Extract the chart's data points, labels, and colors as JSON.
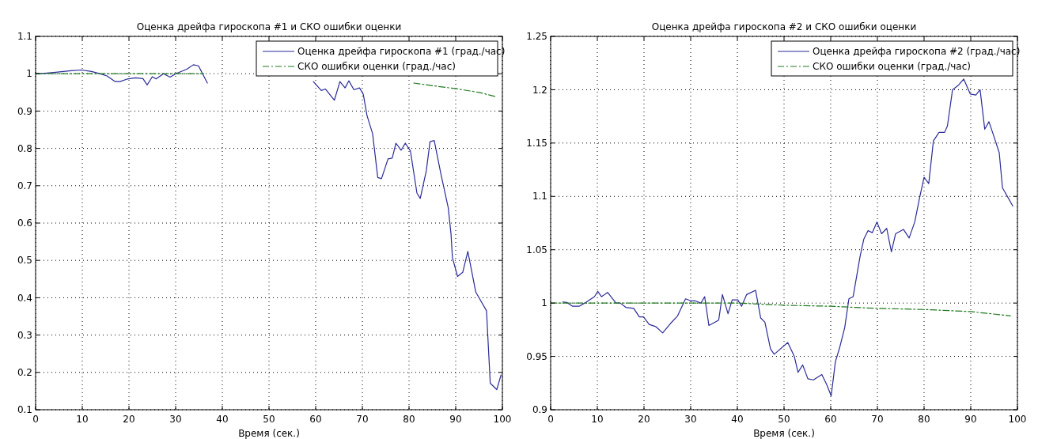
{
  "chart_data": [
    {
      "type": "line",
      "title": "Оценка дрейфа гироскопа #1 и СКО ошибки оценки",
      "xlabel": "Время (сек.)",
      "xlim": [
        0,
        100
      ],
      "xticks": [
        0,
        10,
        20,
        30,
        40,
        50,
        60,
        70,
        80,
        90,
        100
      ],
      "ylim": [
        0.1,
        1.1
      ],
      "yticks": [
        0.1,
        0.2,
        0.3,
        0.4,
        0.5,
        0.6,
        0.7,
        0.8,
        0.9,
        1,
        1.1
      ],
      "grid": true,
      "legend": "top right",
      "series": [
        {
          "name": "Оценка дрейфа гироскопа #1 (град./час)",
          "color": "#2b2b9a",
          "line_style": "solid",
          "x": [
            0,
            1.1,
            4.3,
            7.6,
            9.8,
            12,
            13.7,
            15.3,
            17,
            18.1,
            19.7,
            21.4,
            23,
            23.9,
            25,
            25.8,
            27.4,
            28.8,
            30.2,
            32.4,
            33.8,
            34.9,
            36.8,
            48,
            59.5,
            61.2,
            62.1,
            64,
            65.2,
            66.3,
            67.1,
            68.2,
            69.4,
            70.2,
            71,
            72.2,
            73.3,
            74.1,
            75.5,
            76.4,
            77.2,
            78.3,
            79.2,
            80.3,
            81.7,
            82.4,
            83.7,
            84.5,
            85.4,
            86.8,
            88.4,
            89,
            89.3,
            90.4,
            91.5,
            92.6,
            94.3,
            96.6,
            97.4,
            98.8,
            99.7
          ],
          "values": [
            1,
            1,
            1.004,
            1.008,
            1.01,
            1.006,
            1,
            0.994,
            0.979,
            0.979,
            0.986,
            0.989,
            0.987,
            0.97,
            0.992,
            0.986,
            1,
            0.991,
            1.001,
            1.012,
            1.024,
            1.021,
            0.975,
            null,
            0.979,
            0.955,
            0.959,
            0.929,
            0.979,
            0.962,
            0.981,
            0.957,
            0.962,
            0.945,
            0.888,
            0.839,
            0.722,
            0.719,
            0.772,
            0.774,
            0.814,
            0.795,
            0.814,
            0.793,
            0.68,
            0.666,
            0.74,
            0.818,
            0.821,
            0.733,
            0.641,
            0.57,
            0.507,
            0.457,
            0.468,
            0.524,
            0.415,
            0.365,
            0.171,
            0.154,
            0.193
          ]
        },
        {
          "name": "СКО ошибки оценки (град./час)",
          "color": "#207a20",
          "line_style": "dashdot",
          "x": [
            0,
            10,
            20,
            30,
            36,
            50,
            81,
            85,
            90,
            95,
            98.5
          ],
          "values": [
            1,
            1,
            1,
            1,
            1,
            null,
            0.975,
            0.968,
            0.96,
            0.95,
            0.939
          ]
        }
      ]
    },
    {
      "type": "line",
      "title": "Оценка дрейфа гироскопа #2 и СКО ошибки оценки",
      "xlabel": "Время (сек.)",
      "xlim": [
        0,
        100
      ],
      "xticks": [
        0,
        10,
        20,
        30,
        40,
        50,
        60,
        70,
        80,
        90,
        100
      ],
      "ylim": [
        0.9,
        1.25
      ],
      "yticks": [
        0.9,
        0.95,
        1,
        1.05,
        1.1,
        1.15,
        1.2,
        1.25
      ],
      "grid": true,
      "legend": "top right",
      "series": [
        {
          "name": "Оценка дрейфа гироскопа #2 (град./час)",
          "color": "#2b2b9a",
          "line_style": "solid",
          "x": [
            2.6,
            3.5,
            4.7,
            6.1,
            7.3,
            9.4,
            10.1,
            10.9,
            12.2,
            14,
            14.9,
            16.1,
            17.8,
            19,
            19.9,
            21.1,
            22.5,
            24,
            25.7,
            27.2,
            28.9,
            30.1,
            31,
            32.2,
            33,
            33.9,
            36,
            36.8,
            38,
            38.9,
            40.1,
            40.9,
            42,
            43.9,
            45,
            45.9,
            47.1,
            47.9,
            50.8,
            52.2,
            53,
            54,
            55.1,
            56.3,
            58.1,
            59.2,
            60.1,
            61,
            61.9,
            63,
            63.9,
            64.8,
            66.3,
            67.1,
            68,
            68.9,
            69.9,
            70.9,
            72,
            73,
            73.9,
            75.6,
            76.8,
            78,
            79.1,
            80,
            81,
            82,
            83.2,
            84.4,
            85,
            86.1,
            87.3,
            88.5,
            89.9,
            91.1,
            92,
            93,
            93.9,
            94.9,
            96.1,
            96.8,
            99
          ],
          "values": [
            1.001,
            1.0005,
            0.997,
            0.997,
            1,
            1.006,
            1.011,
            1.006,
            1.01,
            1,
            1,
            0.996,
            0.995,
            0.987,
            0.987,
            0.98,
            0.978,
            0.972,
            0.981,
            0.988,
            1.004,
            1.002,
            1.002,
            1,
            1.006,
            0.979,
            0.984,
            1.008,
            0.99,
            1.003,
            1.003,
            0.997,
            1.008,
            1.012,
            0.986,
            0.982,
            0.957,
            0.952,
            0.963,
            0.95,
            0.935,
            0.942,
            0.929,
            0.928,
            0.933,
            0.923,
            0.913,
            0.945,
            0.958,
            0.977,
            1.004,
            1.006,
            1.044,
            1.06,
            1.068,
            1.066,
            1.076,
            1.065,
            1.07,
            1.048,
            1.065,
            1.069,
            1.061,
            1.076,
            1.1,
            1.118,
            1.112,
            1.152,
            1.16,
            1.16,
            1.166,
            1.2,
            1.204,
            1.21,
            1.196,
            1.195,
            1.2,
            1.163,
            1.17,
            1.157,
            1.141,
            1.108,
            1.091
          ]
        },
        {
          "name": "СКО ошибки оценки (град./час)",
          "color": "#207a20",
          "line_style": "dashdot",
          "x": [
            0,
            20,
            40,
            50,
            60,
            70,
            80,
            90,
            98.5
          ],
          "values": [
            1,
            1,
            1,
            0.998,
            0.997,
            0.995,
            0.994,
            0.992,
            0.988
          ]
        }
      ]
    }
  ]
}
